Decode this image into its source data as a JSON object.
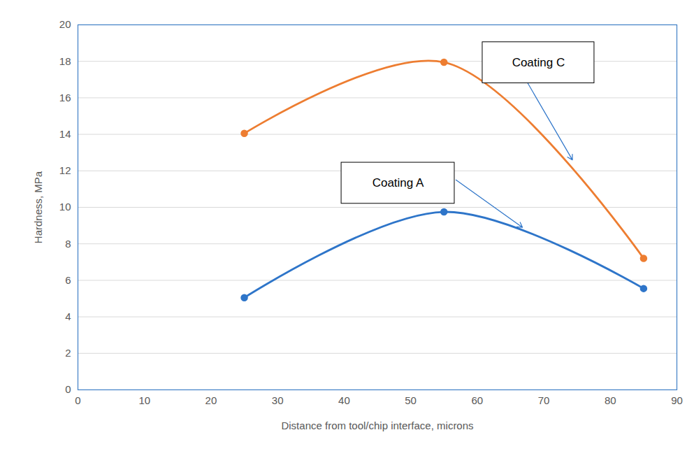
{
  "chart_data": {
    "type": "line",
    "xlabel": "Distance from tool/chip interface, microns",
    "ylabel": "Hardness, MPa",
    "x": [
      25,
      55,
      85
    ],
    "series": [
      {
        "name": "Coating C",
        "color": "#ed7d31",
        "values": [
          14.05,
          17.95,
          7.2
        ]
      },
      {
        "name": "Coating A",
        "color": "#2e75c9",
        "values": [
          5.05,
          9.75,
          5.55
        ]
      }
    ],
    "xlim": [
      0,
      90
    ],
    "xticks": [
      0,
      10,
      20,
      30,
      40,
      50,
      60,
      70,
      80,
      90
    ],
    "ylim": [
      0,
      20
    ],
    "yticks": [
      0,
      2,
      4,
      6,
      8,
      10,
      12,
      14,
      16,
      18,
      20
    ],
    "grid": true,
    "marker": "circle",
    "line_style": "smooth"
  }
}
